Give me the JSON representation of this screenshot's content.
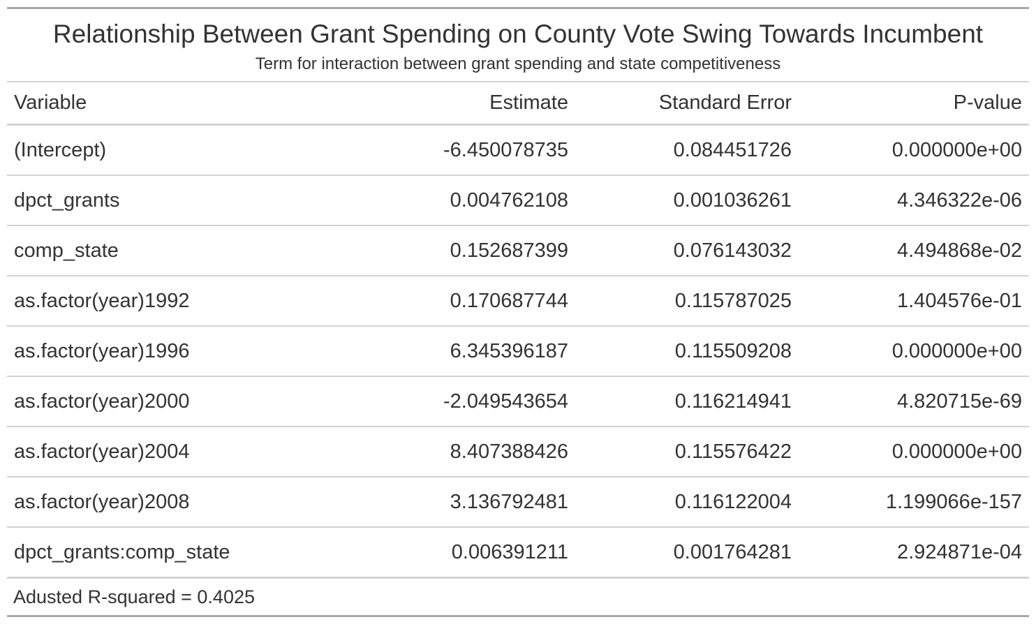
{
  "title": "Relationship Between Grant Spending on County Vote Swing Towards Incumbent",
  "subtitle": "Term for interaction between grant spending and state competitiveness",
  "columns": {
    "variable": "Variable",
    "estimate": "Estimate",
    "std_error": "Standard Error",
    "p_value": "P-value"
  },
  "rows": [
    {
      "variable": "(Intercept)",
      "estimate": "-6.450078735",
      "std_error": "0.084451726",
      "p_value": "0.000000e+00"
    },
    {
      "variable": "dpct_grants",
      "estimate": "0.004762108",
      "std_error": "0.001036261",
      "p_value": "4.346322e-06"
    },
    {
      "variable": "comp_state",
      "estimate": "0.152687399",
      "std_error": "0.076143032",
      "p_value": "4.494868e-02"
    },
    {
      "variable": "as.factor(year)1992",
      "estimate": "0.170687744",
      "std_error": "0.115787025",
      "p_value": "1.404576e-01"
    },
    {
      "variable": "as.factor(year)1996",
      "estimate": "6.345396187",
      "std_error": "0.115509208",
      "p_value": "0.000000e+00"
    },
    {
      "variable": "as.factor(year)2000",
      "estimate": "-2.049543654",
      "std_error": "0.116214941",
      "p_value": "4.820715e-69"
    },
    {
      "variable": "as.factor(year)2004",
      "estimate": "8.407388426",
      "std_error": "0.115576422",
      "p_value": "0.000000e+00"
    },
    {
      "variable": "as.factor(year)2008",
      "estimate": "3.136792481",
      "std_error": "0.116122004",
      "p_value": "1.199066e-157"
    },
    {
      "variable": "dpct_grants:comp_state",
      "estimate": "0.006391211",
      "std_error": "0.001764281",
      "p_value": "2.924871e-04"
    }
  ],
  "footnote": "Adusted R-squared = 0.4025"
}
